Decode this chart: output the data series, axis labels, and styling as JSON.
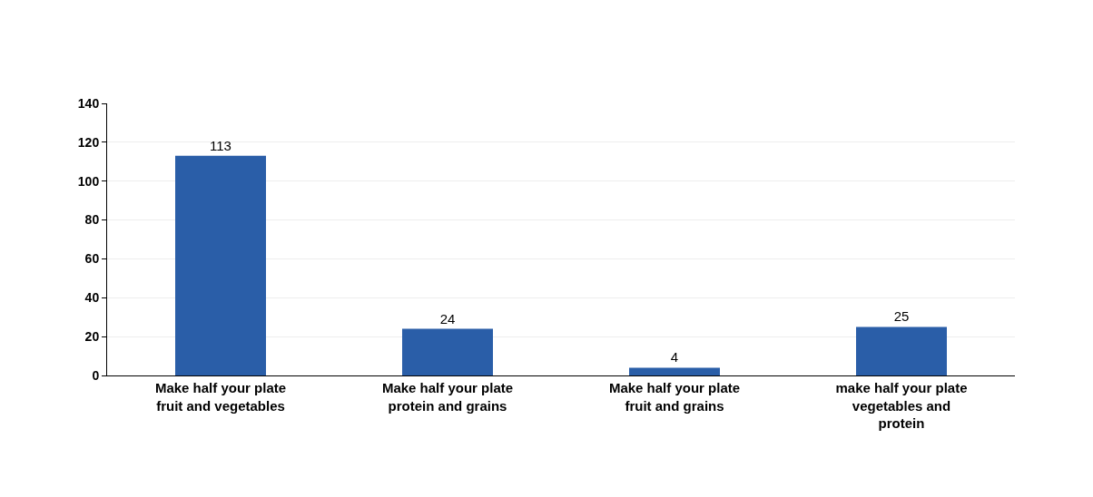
{
  "chart_data": {
    "type": "bar",
    "categories": [
      "Make half your plate fruit and vegetables",
      "Make half your plate protein and grains",
      "Make half your plate fruit and grains",
      "make half your plate vegetables and protein"
    ],
    "values": [
      113,
      24,
      4,
      25
    ],
    "color": "#2a5ea8",
    "ylim": [
      0,
      140
    ],
    "yticks": [
      0,
      20,
      40,
      60,
      80,
      100,
      120,
      140
    ],
    "grid": "y",
    "data_labels": true
  }
}
